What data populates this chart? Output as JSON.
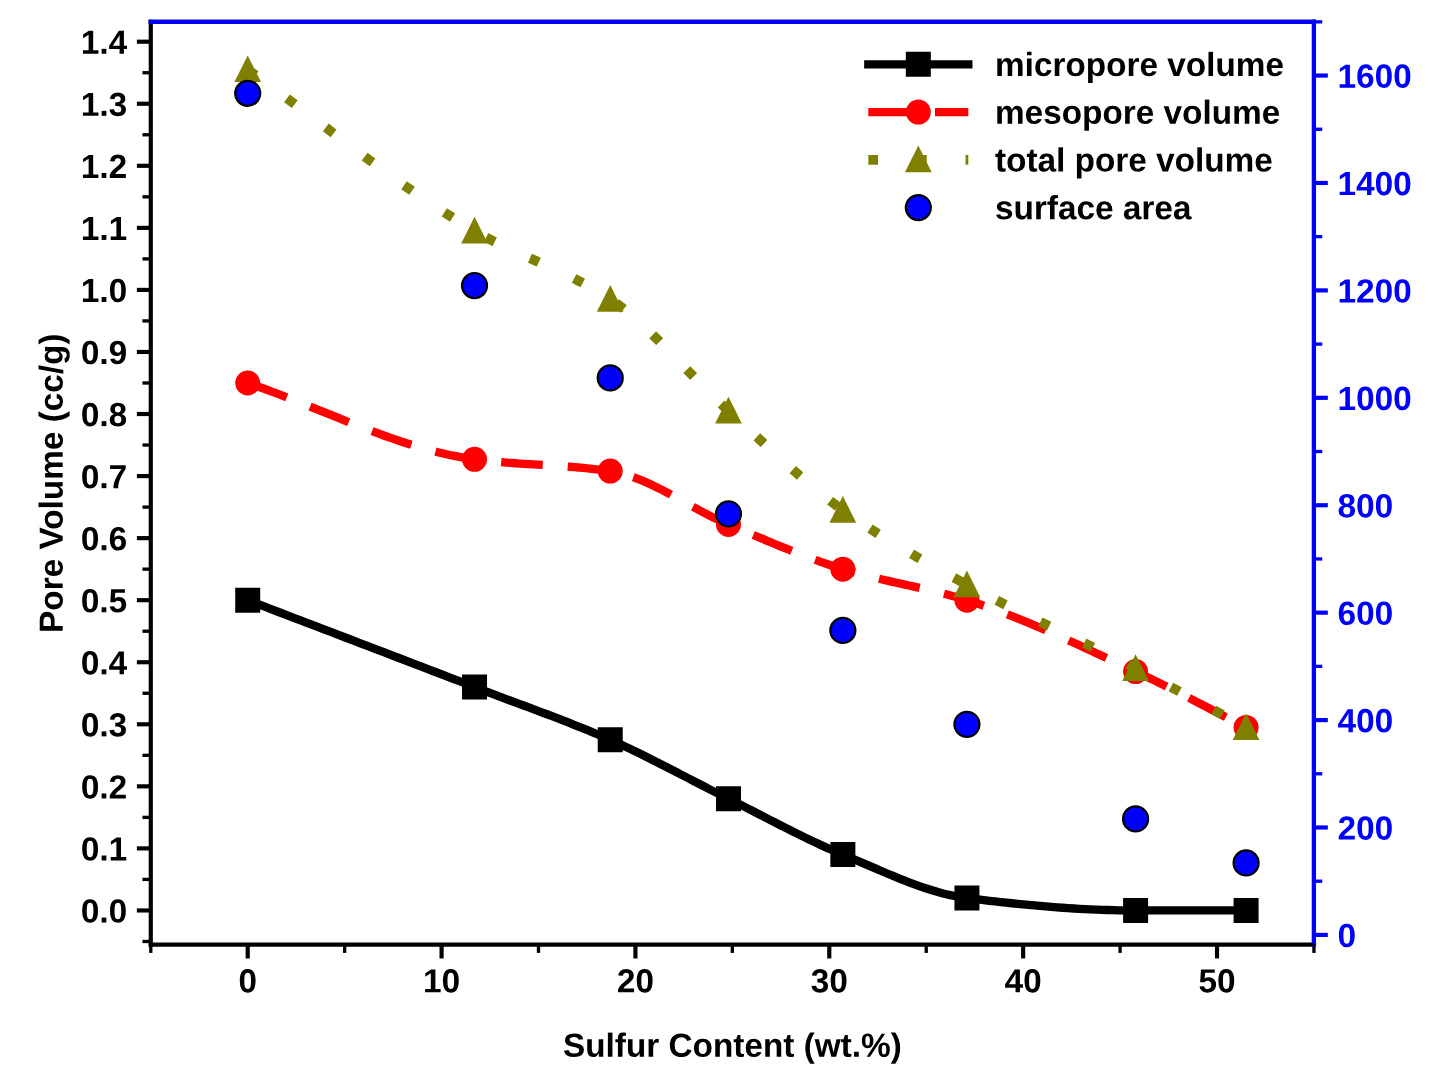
{
  "chart_data": {
    "type": "line",
    "xlabel": "Sulfur Content (wt.%)",
    "ylabel": "Pore Volume (cc/g)",
    "x": [
      0,
      11.7,
      18.7,
      24.8,
      30.7,
      37.1,
      45.8,
      51.5
    ],
    "xlim": [
      -5,
      55
    ],
    "xticks": [
      0,
      10,
      20,
      30,
      40,
      50
    ],
    "ylim": [
      -0.055,
      1.432
    ],
    "yticks": [
      {
        "value": 0,
        "label": "0.0"
      },
      0.1,
      0.2,
      0.3,
      0.4,
      0.5,
      0.6,
      0.7,
      0.8,
      0.9,
      {
        "value": 1,
        "label": "1.0"
      },
      1.1,
      1.2,
      1.3,
      1.4
    ],
    "y2lim": [
      -18,
      1700
    ],
    "y2ticks": [
      0,
      200,
      400,
      600,
      800,
      1000,
      1200,
      1400,
      1600
    ],
    "legend": "top right",
    "grid": false,
    "series": [
      {
        "name": "micropore volume",
        "color": "#000000",
        "marker": "square",
        "line_style": "solid",
        "values": [
          0.5,
          0.36,
          0.275,
          0.18,
          0.09,
          0.02,
          0.0,
          0.0
        ]
      },
      {
        "name": "mesopore volume",
        "color": "#ff0000",
        "marker": "circle",
        "line_style": "dashed",
        "values": [
          0.85,
          0.727,
          0.708,
          0.622,
          0.55,
          0.5,
          0.385,
          0.295
        ]
      },
      {
        "name": "total pore volume",
        "color": "#808000",
        "marker": "triangle",
        "line_style": "dotted",
        "values": [
          1.355,
          1.095,
          0.985,
          0.805,
          0.645,
          0.525,
          0.39,
          0.295
        ]
      },
      {
        "name": "surface area",
        "type": "scatter",
        "axis": "y2",
        "color": "#0000ff",
        "marker": "circle",
        "values": [
          1567,
          1209,
          1037,
          784,
          567,
          392,
          216,
          134
        ]
      }
    ]
  }
}
